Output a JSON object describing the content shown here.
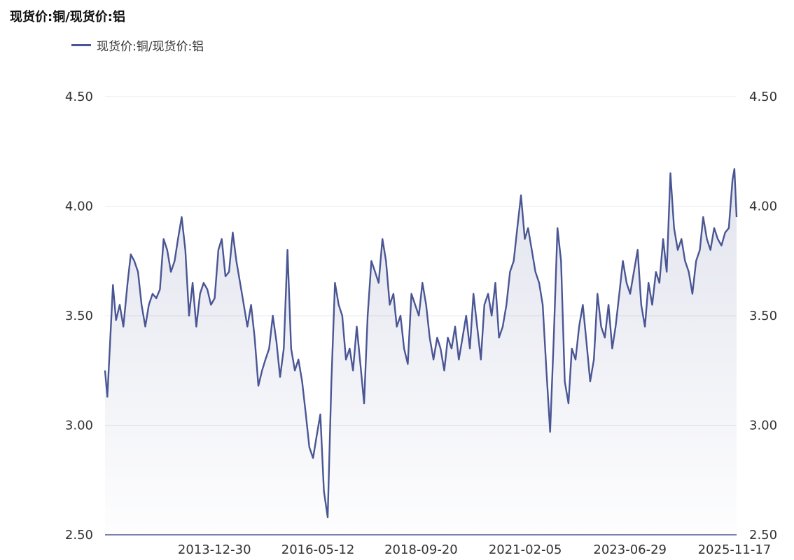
{
  "title": "现货价:铜/现货价:铝",
  "colors": {
    "series": "#4a5694",
    "grid": "#e6e8ee",
    "axis": "#4a5694"
  },
  "chart_data": {
    "type": "area",
    "title": "现货价:铜/现货价:铝",
    "legend": "top-left",
    "grid": true,
    "y_axis_sides": "left-and-right",
    "ylim": [
      2.5,
      4.5
    ],
    "y_ticks": [
      "2.50",
      "3.00",
      "3.50",
      "4.00",
      "4.50"
    ],
    "x_range": [
      "2011-07-01",
      "2025-12-05"
    ],
    "x_ticks": [
      "2013-12-30",
      "2016-05-12",
      "2018-09-20",
      "2021-02-05",
      "2023-06-29",
      "2025-11-17"
    ],
    "series": [
      {
        "name": "现货价:铜/现货价:铝",
        "x": [
          "2011-07-01",
          "2011-07-20",
          "2011-08-10",
          "2011-09-05",
          "2011-10-01",
          "2011-11-01",
          "2011-12-01",
          "2012-01-05",
          "2012-02-01",
          "2012-03-01",
          "2012-04-01",
          "2012-05-01",
          "2012-06-01",
          "2012-07-01",
          "2012-08-01",
          "2012-09-01",
          "2012-10-01",
          "2012-11-01",
          "2012-12-01",
          "2013-01-01",
          "2013-02-01",
          "2013-03-01",
          "2013-04-01",
          "2013-05-01",
          "2013-06-01",
          "2013-07-01",
          "2013-08-01",
          "2013-09-01",
          "2013-10-01",
          "2013-11-01",
          "2013-12-01",
          "2014-01-01",
          "2014-02-01",
          "2014-03-01",
          "2014-04-01",
          "2014-05-01",
          "2014-06-01",
          "2014-07-01",
          "2014-08-01",
          "2014-09-01",
          "2014-10-01",
          "2014-11-01",
          "2014-12-01",
          "2015-01-01",
          "2015-02-01",
          "2015-03-01",
          "2015-04-01",
          "2015-05-01",
          "2015-06-01",
          "2015-07-01",
          "2015-08-01",
          "2015-09-01",
          "2015-10-01",
          "2015-11-01",
          "2015-12-01",
          "2016-01-01",
          "2016-02-01",
          "2016-03-01",
          "2016-04-01",
          "2016-05-01",
          "2016-06-01",
          "2016-07-01",
          "2016-08-01",
          "2016-09-01",
          "2016-10-01",
          "2016-11-01",
          "2016-12-01",
          "2017-01-01",
          "2017-02-01",
          "2017-03-01",
          "2017-04-01",
          "2017-05-01",
          "2017-06-01",
          "2017-07-01",
          "2017-08-01",
          "2017-09-01",
          "2017-10-01",
          "2017-11-01",
          "2017-12-01",
          "2018-01-01",
          "2018-02-01",
          "2018-03-01",
          "2018-04-01",
          "2018-05-01",
          "2018-06-01",
          "2018-07-01",
          "2018-08-01",
          "2018-09-01",
          "2018-10-01",
          "2018-11-01",
          "2018-12-01",
          "2019-01-01",
          "2019-02-01",
          "2019-03-01",
          "2019-04-01",
          "2019-05-01",
          "2019-06-01",
          "2019-07-01",
          "2019-08-01",
          "2019-09-01",
          "2019-10-01",
          "2019-11-01",
          "2019-12-01",
          "2020-01-01",
          "2020-02-01",
          "2020-03-01",
          "2020-04-01",
          "2020-05-01",
          "2020-06-01",
          "2020-07-01",
          "2020-08-01",
          "2020-09-01",
          "2020-10-01",
          "2020-11-01",
          "2020-12-01",
          "2021-01-01",
          "2021-02-01",
          "2021-03-01",
          "2021-04-01",
          "2021-05-01",
          "2021-06-01",
          "2021-07-01",
          "2021-08-01",
          "2021-09-01",
          "2021-10-01",
          "2021-11-01",
          "2021-12-01",
          "2022-01-01",
          "2022-02-01",
          "2022-03-01",
          "2022-04-01",
          "2022-05-01",
          "2022-06-01",
          "2022-07-01",
          "2022-08-01",
          "2022-09-01",
          "2022-10-01",
          "2022-11-01",
          "2022-12-01",
          "2023-01-01",
          "2023-02-01",
          "2023-03-01",
          "2023-04-01",
          "2023-05-01",
          "2023-06-01",
          "2023-07-01",
          "2023-08-01",
          "2023-09-01",
          "2023-10-01",
          "2023-11-01",
          "2023-12-01",
          "2024-01-01",
          "2024-02-01",
          "2024-03-01",
          "2024-04-01",
          "2024-05-01",
          "2024-06-01",
          "2024-07-01",
          "2024-08-01",
          "2024-09-01",
          "2024-10-01",
          "2024-11-01",
          "2024-12-01",
          "2025-01-01",
          "2025-02-01",
          "2025-03-01",
          "2025-04-01",
          "2025-05-01",
          "2025-06-01",
          "2025-07-01",
          "2025-08-01",
          "2025-09-01",
          "2025-10-01",
          "2025-11-01",
          "2025-11-17",
          "2025-12-05"
        ],
        "y": [
          3.25,
          3.13,
          3.35,
          3.64,
          3.48,
          3.55,
          3.45,
          3.65,
          3.78,
          3.75,
          3.7,
          3.55,
          3.45,
          3.55,
          3.6,
          3.58,
          3.62,
          3.85,
          3.8,
          3.7,
          3.75,
          3.85,
          3.95,
          3.8,
          3.5,
          3.65,
          3.45,
          3.6,
          3.65,
          3.62,
          3.55,
          3.58,
          3.8,
          3.85,
          3.68,
          3.7,
          3.88,
          3.75,
          3.65,
          3.55,
          3.45,
          3.55,
          3.4,
          3.18,
          3.25,
          3.3,
          3.35,
          3.5,
          3.38,
          3.22,
          3.35,
          3.8,
          3.35,
          3.25,
          3.3,
          3.2,
          3.05,
          2.9,
          2.85,
          2.95,
          3.05,
          2.7,
          2.58,
          3.2,
          3.65,
          3.55,
          3.5,
          3.3,
          3.35,
          3.25,
          3.45,
          3.28,
          3.1,
          3.5,
          3.75,
          3.7,
          3.65,
          3.85,
          3.75,
          3.55,
          3.6,
          3.45,
          3.5,
          3.35,
          3.28,
          3.6,
          3.55,
          3.5,
          3.65,
          3.55,
          3.4,
          3.3,
          3.4,
          3.35,
          3.25,
          3.4,
          3.35,
          3.45,
          3.3,
          3.4,
          3.5,
          3.35,
          3.6,
          3.45,
          3.3,
          3.55,
          3.6,
          3.5,
          3.65,
          3.4,
          3.45,
          3.55,
          3.7,
          3.75,
          3.9,
          4.05,
          3.85,
          3.9,
          3.8,
          3.7,
          3.65,
          3.55,
          3.25,
          2.97,
          3.4,
          3.9,
          3.75,
          3.2,
          3.1,
          3.35,
          3.3,
          3.45,
          3.55,
          3.38,
          3.2,
          3.3,
          3.6,
          3.45,
          3.4,
          3.55,
          3.35,
          3.45,
          3.6,
          3.75,
          3.65,
          3.6,
          3.7,
          3.8,
          3.55,
          3.45,
          3.65,
          3.55,
          3.7,
          3.65,
          3.85,
          3.7,
          4.15,
          3.9,
          3.8,
          3.85,
          3.75,
          3.7,
          3.6,
          3.75,
          3.8,
          3.95,
          3.85,
          3.8,
          3.9,
          3.85,
          3.82,
          3.88,
          3.9,
          4.12,
          4.17,
          3.95
        ]
      }
    ]
  }
}
